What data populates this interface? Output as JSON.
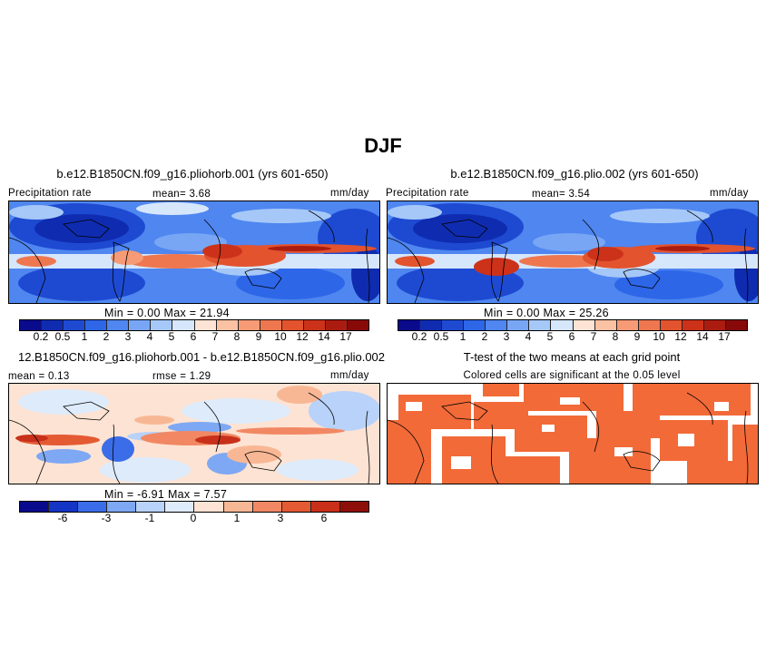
{
  "figure": {
    "title": "DJF"
  },
  "panels": {
    "p1": {
      "title": "b.e12.B1850CN.f09_g16.pliohorb.001 (yrs 601-650)",
      "left_label": "Precipitation rate",
      "center_label": "mean=   3.68",
      "units": "mm/day",
      "minmax": "Min =    0.00  Max =   21.94"
    },
    "p2": {
      "title": "b.e12.B1850CN.f09_g16.plio.002 (yrs 601-650)",
      "left_label": "Precipitation rate",
      "center_label": "mean=   3.54",
      "units": "mm/day",
      "minmax": "Min =    0.00  Max =   25.26"
    },
    "p3": {
      "title": "12.B1850CN.f09_g16.pliohorb.001 - b.e12.B1850CN.f09_g16.plio.002",
      "left_label": "mean =   0.13",
      "center_label": "rmse =    1.29",
      "units": "mm/day",
      "minmax": "Min =   -6.91  Max =    7.57"
    },
    "p4": {
      "title": "T-test of the two means at each grid point",
      "subtitle": "Colored cells are significant at the 0.05 level"
    }
  },
  "colorbars": {
    "precip": {
      "ticks": [
        "0.2",
        "0.5",
        "1",
        "2",
        "3",
        "4",
        "5",
        "6",
        "7",
        "8",
        "9",
        "10",
        "12",
        "14",
        "17"
      ],
      "colors": [
        "#0a0a8c",
        "#0f2cb0",
        "#1e4ad2",
        "#2e66e8",
        "#4f86f0",
        "#78a6f5",
        "#a6c8f8",
        "#d6e6fb",
        "#fde3d3",
        "#fac1a3",
        "#f69b76",
        "#ee7750",
        "#e2532e",
        "#cc321a",
        "#ab1c10",
        "#870a08"
      ]
    },
    "diff": {
      "ticks": [
        "-6",
        "-3",
        "-1",
        "0",
        "1",
        "3",
        "6"
      ],
      "colors": [
        "#0a0a8c",
        "#1535c4",
        "#3b6de8",
        "#7ea8f3",
        "#b8d2f9",
        "#deebfb",
        "#fde3d3",
        "#f8b794",
        "#f18863",
        "#e45a33",
        "#c8301a",
        "#8e0e0a"
      ]
    }
  },
  "colors": {
    "significance": "#f26a38",
    "background": "#ffffff"
  }
}
